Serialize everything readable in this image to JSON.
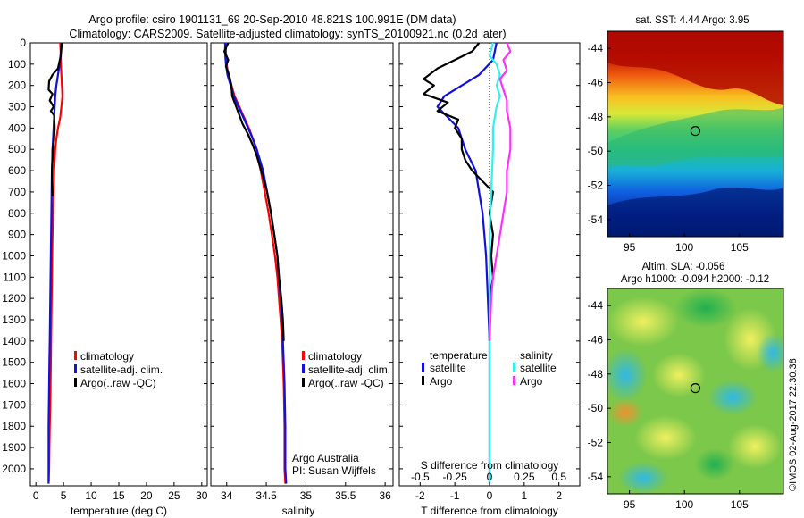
{
  "header": {
    "title_line1": "Argo profile: csiro 1901131_69 20-Sep-2010 48.821S 100.991E (DM data)",
    "title_line2": "Climatology: CARS2009. Satellite-adjusted climatology: synTS_20100921.nc (0.2d later)"
  },
  "colors": {
    "climatology": "#ff0000",
    "satellite": "#1010e0",
    "argo": "#000000",
    "sat_salinity": "#30f0f0",
    "argo_salinity": "#ff30ff"
  },
  "credit": "©IMOS 02-Aug-2017 22:30:38",
  "chart_data": [
    {
      "id": "temperature",
      "type": "line",
      "xlabel": "temperature (deg C)",
      "ylabel": "",
      "xlim": [
        -1,
        31
      ],
      "ylim": [
        2080,
        0
      ],
      "xticks": [
        0,
        5,
        10,
        15,
        20,
        25,
        30
      ],
      "yticks": [
        0,
        100,
        200,
        300,
        400,
        500,
        600,
        700,
        800,
        900,
        1000,
        1100,
        1200,
        1300,
        1400,
        1500,
        1600,
        1700,
        1800,
        1900,
        2000
      ],
      "legend": {
        "placement": "lower-center",
        "entries": [
          "climatology",
          "satellite-adj. clim.",
          "Argo(..raw -QC)"
        ]
      },
      "series": [
        {
          "name": "climatology",
          "color": "#ff0000",
          "x": [
            4.4,
            4.5,
            4.5,
            4.6,
            4.7,
            4.8,
            4.6,
            4.4,
            4.0,
            3.7,
            3.5,
            3.3,
            3.2,
            3.1,
            3.0,
            2.95,
            2.9,
            2.85,
            2.8,
            2.75,
            2.7,
            2.65,
            2.6,
            2.5,
            2.45,
            2.4,
            2.35,
            2.35
          ],
          "y": [
            0,
            50,
            100,
            150,
            200,
            250,
            300,
            350,
            400,
            450,
            500,
            600,
            700,
            800,
            900,
            1000,
            1100,
            1200,
            1300,
            1400,
            1500,
            1600,
            1700,
            1800,
            1900,
            2000,
            2040,
            2060
          ]
        },
        {
          "name": "satellite-adj. clim.",
          "color": "#1010e0",
          "x": [
            4.6,
            4.5,
            4.3,
            4.0,
            3.7,
            3.5,
            3.4,
            3.3,
            3.2,
            3.1,
            3.0,
            2.9,
            2.85,
            2.8,
            2.75,
            2.7,
            2.65,
            2.6,
            2.55,
            2.5,
            2.45,
            2.4,
            2.35,
            2.3,
            2.3
          ],
          "y": [
            0,
            50,
            100,
            150,
            200,
            250,
            300,
            350,
            400,
            450,
            500,
            600,
            700,
            800,
            900,
            1000,
            1100,
            1200,
            1300,
            1400,
            1500,
            1600,
            1700,
            1800,
            2070
          ]
        },
        {
          "name": "Argo(..raw -QC)",
          "color": "#000000",
          "x": [
            4.7,
            4.5,
            4.0,
            3.0,
            2.4,
            2.3,
            3.0,
            2.5,
            3.2,
            2.7,
            3.3,
            3.4,
            3.3,
            3.0,
            3.0,
            2.9,
            2.9,
            3.0
          ],
          "y": [
            0,
            60,
            120,
            150,
            180,
            220,
            240,
            270,
            300,
            320,
            340,
            400,
            450,
            500,
            550,
            600,
            650,
            720
          ]
        }
      ]
    },
    {
      "id": "salinity",
      "type": "line",
      "xlabel": "salinity",
      "ylabel": "",
      "xlim": [
        33.8,
        36.1
      ],
      "ylim": [
        2080,
        0
      ],
      "xticks": [
        34,
        34.5,
        35,
        35.5,
        36
      ],
      "legend": {
        "placement": "lower-right",
        "entries": [
          "climatology",
          "satellite-adj. clim.",
          "Argo(..raw -QC)"
        ]
      },
      "annotations": [
        "Argo Australia",
        "PI: Susan Wijffels"
      ],
      "series": [
        {
          "name": "climatology",
          "color": "#ff0000",
          "x": [
            33.99,
            33.99,
            34.0,
            34.02,
            34.06,
            34.1,
            34.16,
            34.22,
            34.28,
            34.33,
            34.38,
            34.4,
            34.43,
            34.48,
            34.53,
            34.57,
            34.61,
            34.64,
            34.66,
            34.68,
            34.7,
            34.71,
            34.72,
            34.73,
            34.73,
            34.74
          ],
          "y": [
            0,
            50,
            100,
            150,
            200,
            250,
            300,
            350,
            400,
            450,
            500,
            550,
            600,
            700,
            800,
            900,
            1000,
            1100,
            1200,
            1300,
            1400,
            1500,
            1600,
            1800,
            2000,
            2070
          ]
        },
        {
          "name": "satellite-adj. clim.",
          "color": "#1010e0",
          "x": [
            33.98,
            33.98,
            33.99,
            34.01,
            34.05,
            34.09,
            34.15,
            34.21,
            34.27,
            34.33,
            34.38,
            34.42,
            34.46,
            34.51,
            34.56,
            34.6,
            34.64,
            34.66,
            34.68,
            34.7,
            34.71,
            34.72,
            34.73,
            34.74,
            34.74,
            34.75
          ],
          "y": [
            0,
            50,
            100,
            150,
            200,
            250,
            300,
            350,
            400,
            450,
            500,
            550,
            600,
            700,
            800,
            900,
            1000,
            1100,
            1200,
            1300,
            1400,
            1500,
            1600,
            1800,
            2000,
            2070
          ]
        },
        {
          "name": "Argo(..raw -QC)",
          "color": "#000000",
          "x": [
            34.02,
            33.97,
            34.02,
            33.99,
            34.03,
            34.06,
            34.07,
            34.1,
            34.14,
            34.2,
            34.27,
            34.33,
            34.38,
            34.42,
            34.46,
            34.51,
            34.56,
            34.6,
            34.64,
            34.66,
            34.69,
            34.71,
            34.72
          ],
          "y": [
            0,
            40,
            80,
            110,
            150,
            200,
            250,
            280,
            320,
            380,
            430,
            480,
            530,
            580,
            630,
            700,
            800,
            900,
            1000,
            1100,
            1200,
            1300,
            1400
          ]
        }
      ]
    },
    {
      "id": "difference",
      "type": "line",
      "xlabel": "T difference from climatology",
      "xlabel_top": "S difference from climatology",
      "xlim": [
        -2.6,
        2.6
      ],
      "ylim": [
        2080,
        0
      ],
      "xticks": [
        -2,
        -1,
        0,
        1,
        2
      ],
      "xticks_salinity": [
        -0.5,
        -0.25,
        0,
        0.25,
        0.5
      ],
      "legend": {
        "placement": "lower-center",
        "headers": [
          "temperature",
          "salinity"
        ],
        "entries": [
          "satellite",
          "Argo",
          "satellite",
          "Argo"
        ]
      },
      "series": [
        {
          "name": "satellite",
          "group": "temperature",
          "color": "#1010e0",
          "x": [
            0.2,
            0.1,
            -0.3,
            -0.8,
            -1.3,
            -1.5,
            -1.2,
            -0.9,
            -0.7,
            -0.4,
            -0.3,
            -0.2,
            -0.15,
            -0.1,
            -0.05,
            0,
            0,
            0
          ],
          "y": [
            0,
            80,
            150,
            200,
            250,
            300,
            350,
            400,
            500,
            600,
            700,
            800,
            900,
            1000,
            1200,
            1400,
            1800,
            2070
          ]
        },
        {
          "name": "Argo",
          "group": "temperature",
          "color": "#000000",
          "x": [
            -0.3,
            -0.5,
            -1.0,
            -1.5,
            -1.9,
            -1.6,
            -1.9,
            -1.2,
            -1.5,
            -0.9,
            -1.0,
            -0.8,
            -0.8,
            -0.7,
            -0.5,
            -0.2,
            0.1,
            0.0,
            0.1,
            0.05,
            0.1,
            0.0,
            0.0
          ],
          "y": [
            0,
            40,
            80,
            120,
            170,
            200,
            240,
            280,
            320,
            360,
            400,
            450,
            500,
            550,
            600,
            650,
            700,
            800,
            900,
            1000,
            1100,
            1200,
            1400
          ]
        },
        {
          "name": "satellite",
          "group": "salinity",
          "color": "#30f0f0",
          "x": [
            0.1,
            0.0,
            0.2,
            0.3,
            0.2,
            0.3,
            0.2,
            0.1,
            0.1,
            0.05,
            0.0,
            0.0,
            0.0,
            0.0
          ],
          "y": [
            0,
            60,
            100,
            150,
            200,
            250,
            300,
            400,
            500,
            700,
            900,
            1200,
            1600,
            2070
          ]
        },
        {
          "name": "Argo",
          "group": "salinity",
          "color": "#ff30ff",
          "x": [
            0.5,
            0.6,
            0.4,
            0.5,
            0.3,
            0.4,
            0.5,
            0.5,
            0.6,
            0.6,
            0.5,
            0.5,
            0.4,
            0.3,
            0.2,
            0.1,
            0.05,
            0.0
          ],
          "y": [
            0,
            40,
            80,
            130,
            170,
            220,
            270,
            320,
            400,
            500,
            600,
            700,
            800,
            900,
            1000,
            1100,
            1200,
            1400
          ]
        }
      ]
    },
    {
      "id": "sst-map",
      "type": "heatmap",
      "title": "sat. SST: 4.44  Argo: 3.95",
      "xticks": [
        95,
        100,
        105
      ],
      "yticks": [
        -44,
        -46,
        -48,
        -50,
        -52,
        -54
      ],
      "xlim": [
        93,
        109
      ],
      "ylim": [
        -55,
        -43
      ],
      "float_position": {
        "lon": 100.991,
        "lat": -48.821
      }
    },
    {
      "id": "sla-map",
      "type": "heatmap",
      "title_line1": "Altim. SLA: -0.056",
      "title_line2": "Argo h1000: -0.094  h2000: -0.12",
      "xticks": [
        95,
        100,
        105
      ],
      "yticks": [
        -44,
        -46,
        -48,
        -50,
        -52,
        -54
      ],
      "xlim": [
        93,
        109
      ],
      "ylim": [
        -55,
        -43
      ],
      "float_position": {
        "lon": 100.991,
        "lat": -48.821
      }
    }
  ]
}
